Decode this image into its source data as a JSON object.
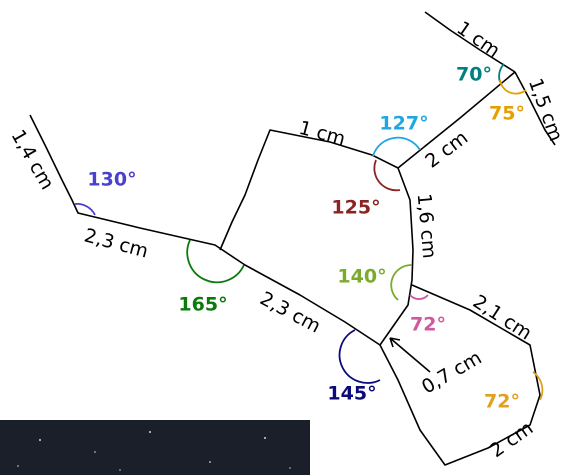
{
  "lengths": [
    "1 cm",
    "1,5 cm",
    "1,4 cm",
    "1 cm",
    "2 cm",
    "1,6 cm",
    "2,3 cm",
    "2,3 cm",
    "2,1 cm",
    "0,7 cm",
    "2 cm"
  ],
  "angles": [
    "70°",
    "75°",
    "127°",
    "125°",
    "130°",
    "165°",
    "140°",
    "72°",
    "72°",
    "145°"
  ]
}
